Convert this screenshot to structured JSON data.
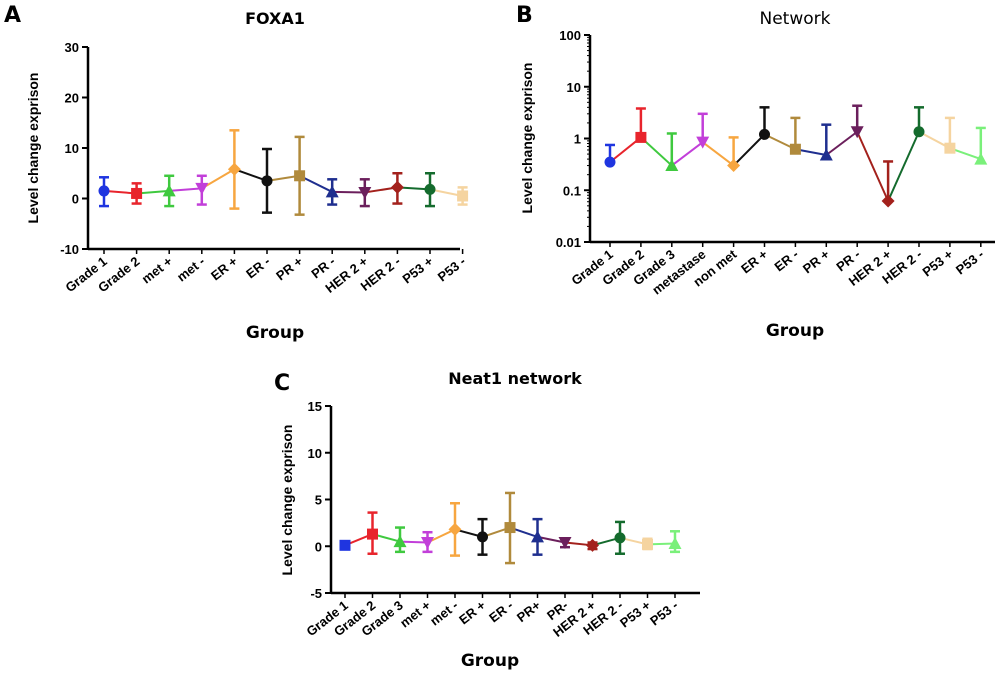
{
  "chart_data": [
    {
      "panel": "A",
      "type": "line",
      "title": "FOXA1",
      "xlabel": "Group",
      "ylabel": "Level change exprison",
      "yscale": "linear",
      "ylim": [
        -10,
        30
      ],
      "yticks": [
        "-10",
        "0",
        "10",
        "20",
        "30"
      ],
      "grid": false,
      "categories": [
        "Grade 1",
        "Grade 2",
        "met +",
        "met -",
        "ER +",
        "ER -",
        "PR +",
        "PR -",
        "HER 2 +",
        "HER 2 -",
        "P53 +",
        "P53 -"
      ],
      "values": [
        1.5,
        1.0,
        1.5,
        2.0,
        5.8,
        3.5,
        4.5,
        1.3,
        1.2,
        2.2,
        1.8,
        0.5
      ],
      "error_low": [
        -1.5,
        -1.0,
        -1.5,
        -1.2,
        -2.0,
        -2.8,
        -3.2,
        -1.2,
        -1.5,
        -1.0,
        -1.5,
        -1.2
      ],
      "error_high": [
        4.2,
        3.0,
        4.5,
        4.5,
        13.5,
        9.8,
        12.2,
        3.8,
        3.8,
        5.0,
        5.0,
        2.2
      ],
      "colors": [
        "#1f35e0",
        "#e8242c",
        "#3fc93f",
        "#c23fd9",
        "#f7a640",
        "#111111",
        "#b08a3c",
        "#1f2f8f",
        "#6b1f5c",
        "#a3211c",
        "#146b2d",
        "#f5d4a0"
      ],
      "markers": [
        "circle",
        "square",
        "triangle-up",
        "triangle-down",
        "diamond",
        "circle",
        "square",
        "triangle-up",
        "triangle-down",
        "diamond",
        "circle",
        "square"
      ]
    },
    {
      "panel": "B",
      "type": "line",
      "title": "Network",
      "xlabel": "Group",
      "ylabel": "Level change exprison",
      "yscale": "log",
      "ylim": [
        0.01,
        100
      ],
      "yticks": [
        "0.01",
        "0.1",
        "1",
        "10",
        "100"
      ],
      "grid": false,
      "categories": [
        "Grade 1",
        "Grade 2",
        "Grade 3",
        "metastase",
        "non met",
        "ER +",
        "ER -",
        "PR +",
        "PR -",
        "HER 2 +",
        "HER 2 -",
        "P53 +",
        "P53 -"
      ],
      "values": [
        0.35,
        1.05,
        0.3,
        0.85,
        0.3,
        1.2,
        0.62,
        0.48,
        1.35,
        0.062,
        1.35,
        0.65,
        0.4
      ],
      "error_high": [
        0.75,
        3.8,
        1.25,
        3.0,
        1.05,
        4.0,
        2.5,
        1.85,
        4.3,
        0.36,
        4.0,
        2.5,
        1.6
      ],
      "colors": [
        "#1f35e0",
        "#e8242c",
        "#3fc93f",
        "#c23fd9",
        "#f7a640",
        "#111111",
        "#b08a3c",
        "#1f2f8f",
        "#6b1f5c",
        "#a3211c",
        "#146b2d",
        "#f5d4a0",
        "#7af07a"
      ],
      "markers": [
        "circle",
        "square",
        "triangle-up",
        "triangle-down",
        "diamond",
        "circle",
        "square",
        "triangle-up",
        "triangle-down",
        "diamond",
        "circle",
        "square",
        "triangle-up"
      ]
    },
    {
      "panel": "C",
      "type": "line",
      "title": "Neat1 network",
      "xlabel": "Group",
      "ylabel": "Level change exprison",
      "yscale": "linear",
      "ylim": [
        -5,
        15
      ],
      "yticks": [
        "-5",
        "0",
        "5",
        "10",
        "15"
      ],
      "grid": false,
      "categories": [
        "Grade 1",
        "Grade 2",
        "Grade 3",
        "met +",
        "met -",
        "ER +",
        "ER -",
        "PR+",
        "PR-",
        "HER 2 +",
        "HER 2 -",
        "P53 +",
        "P53 -"
      ],
      "values": [
        0.1,
        1.3,
        0.5,
        0.4,
        1.8,
        1.0,
        2.0,
        1.0,
        0.4,
        0.1,
        0.9,
        0.2,
        0.3
      ],
      "error_low": [
        -0.2,
        -0.8,
        -0.6,
        -0.6,
        -1.0,
        -0.9,
        -1.8,
        -0.9,
        -0.1,
        -0.3,
        -0.8,
        -0.3,
        -0.6
      ],
      "error_high": [
        0.4,
        3.6,
        2.0,
        1.5,
        4.6,
        2.9,
        5.7,
        2.9,
        0.8,
        0.4,
        2.6,
        0.8,
        1.6
      ],
      "colors": [
        "#1f35e0",
        "#e8242c",
        "#3fc93f",
        "#c23fd9",
        "#f7a640",
        "#111111",
        "#b08a3c",
        "#1f2f8f",
        "#6b1f5c",
        "#a3211c",
        "#146b2d",
        "#f5d4a0",
        "#7af07a"
      ],
      "markers": [
        "square",
        "square",
        "triangle-up",
        "triangle-down",
        "diamond",
        "circle",
        "square",
        "triangle-up",
        "triangle-down",
        "diamond",
        "circle",
        "square",
        "triangle-up"
      ]
    }
  ]
}
